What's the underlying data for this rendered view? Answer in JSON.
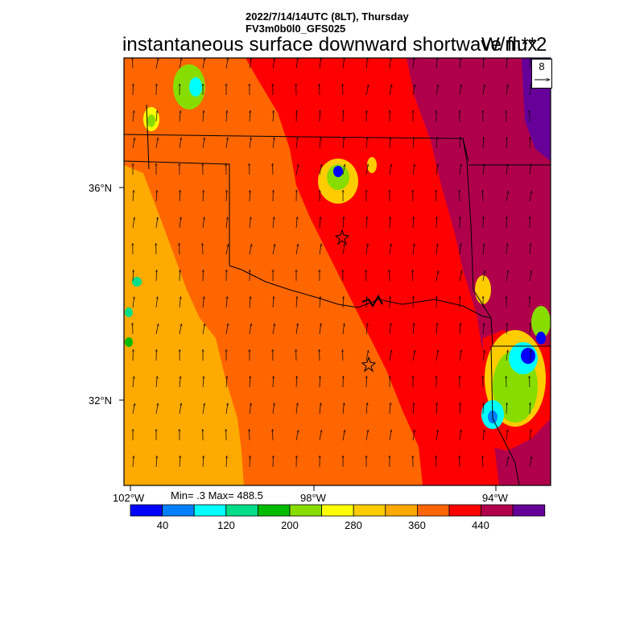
{
  "header": {
    "datetime": "2022/7/14/14UTC (8LT), Thursday",
    "model": "FV3m0b0l0_GFS025",
    "title": "instantaneous surface downward shortwave flux",
    "units": "W/m**2"
  },
  "map": {
    "lat_labels": [
      "36°N",
      "32°N"
    ],
    "lon_labels": [
      "102°W",
      "98°W",
      "94°W"
    ],
    "stats": "Min= .3 Max= 488.5",
    "reference_vector": "8",
    "colors": {
      "c360": "#ff6600",
      "c400": "#ff0000",
      "c440": "#b0004c",
      "c480": "#660099",
      "c320": "#ffaa00",
      "c280": "#ffcc00"
    }
  },
  "colorbar": {
    "colors": [
      "#0000ff",
      "#0080ff",
      "#00ffff",
      "#00dd88",
      "#00bb00",
      "#88dd00",
      "#ffff00",
      "#ffcc00",
      "#ffaa00",
      "#ff6600",
      "#ff0000",
      "#b0004c",
      "#660099"
    ],
    "labels": [
      "40",
      "120",
      "200",
      "280",
      "360",
      "440"
    ]
  }
}
